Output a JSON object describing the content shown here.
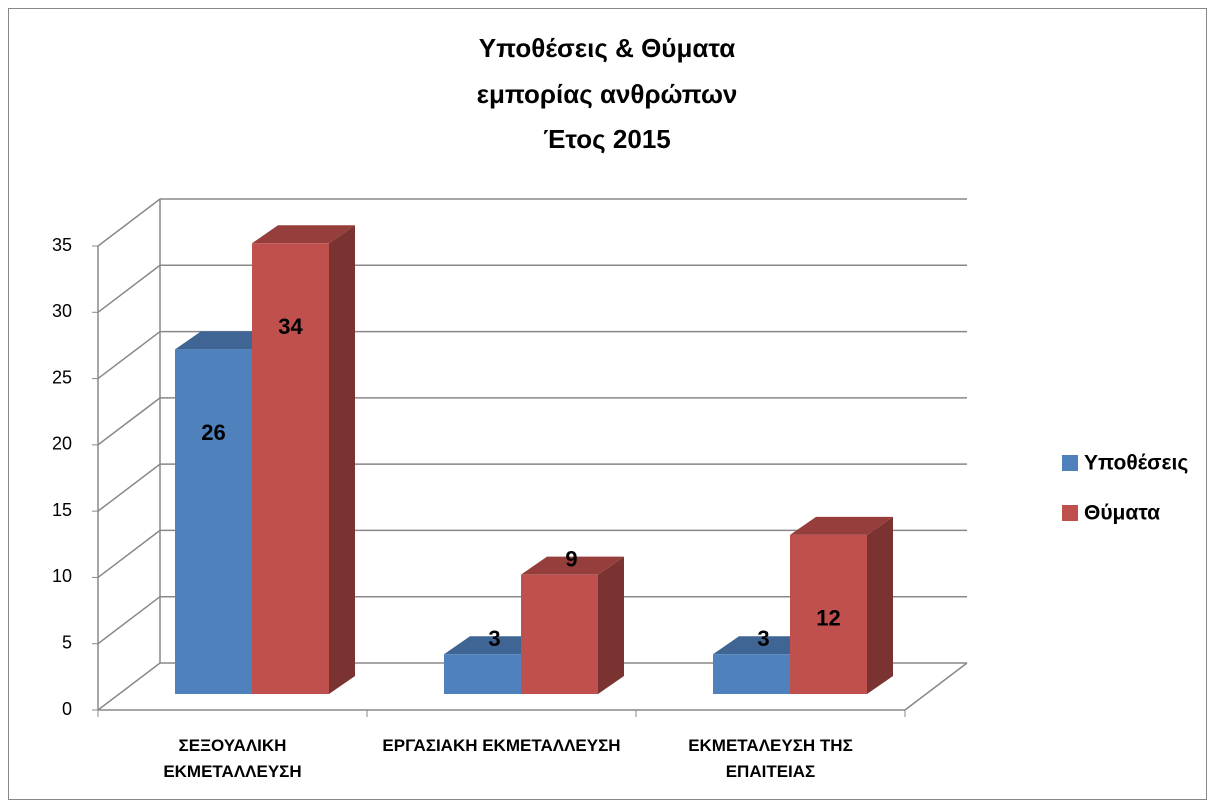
{
  "chart_data": {
    "type": "bar3d",
    "title": [
      "Υποθέσεις & Θύματα",
      "εμπορίας ανθρώπων",
      "Έτος 2015"
    ],
    "categories": [
      "ΣΕΞΟΥΑΛΙΚΗ ΕΚΜΕΤΑΛΛΕΥΣΗ",
      "ΕΡΓΑΣΙΑΚΗ ΕΚΜΕΤΑΛΛΕΥΣΗ",
      "ΕΚΜΕΤΑΛΕΥΣΗ ΤΗΣ ΕΠΑΙΤΕΙΑΣ"
    ],
    "series": [
      {
        "name": "Υποθέσεις",
        "color": "#4f81bd",
        "values": [
          26,
          3,
          3
        ]
      },
      {
        "name": "Θύματα",
        "color": "#c0504d",
        "values": [
          34,
          9,
          12
        ]
      }
    ],
    "ylim": [
      0,
      35
    ],
    "yticks": [
      0,
      5,
      10,
      15,
      20,
      25,
      30,
      35
    ],
    "grid": true,
    "legend": "right"
  }
}
